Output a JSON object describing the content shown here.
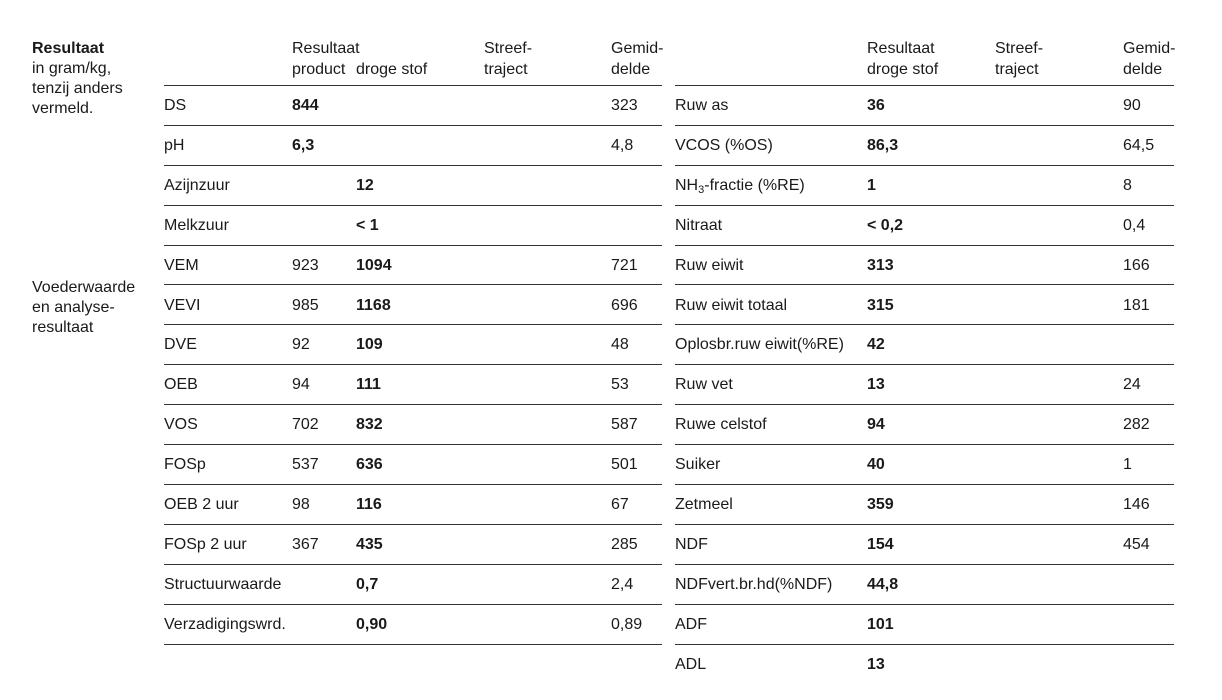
{
  "sidebar": {
    "result_title": "Resultaat",
    "result_lines": [
      "in gram/kg,",
      "tenzij anders",
      "vermeld."
    ],
    "feed_lines": [
      "Voederwaarde",
      "en analyse-",
      "resultaat"
    ]
  },
  "left_headers": {
    "result_l1": "Resultaat",
    "result_l2a": "product",
    "result_l2b": "droge stof",
    "target_l1": "Streef-",
    "target_l2": "traject",
    "avg_l1": "Gemid-",
    "avg_l2": "delde"
  },
  "right_headers": {
    "result_l1": "Resultaat",
    "result_l2": "droge stof",
    "target_l1": "Streef-",
    "target_l2": "traject",
    "avg_l1": "Gemid-",
    "avg_l2": "delde"
  },
  "left_rows": [
    {
      "label": "DS",
      "product": "844",
      "product_bold": true,
      "dm": "",
      "avg": "323"
    },
    {
      "label": "pH",
      "product": "6,3",
      "product_bold": true,
      "dm": "",
      "avg": "4,8"
    },
    {
      "label": "Azijnzuur",
      "product": "",
      "product_bold": false,
      "dm": "12",
      "avg": ""
    },
    {
      "label": "Melkzuur",
      "product": "",
      "product_bold": false,
      "dm": "< 1",
      "avg": ""
    },
    {
      "label": "VEM",
      "product": "923",
      "product_bold": false,
      "dm": "1094",
      "avg": "721"
    },
    {
      "label": "VEVI",
      "product": "985",
      "product_bold": false,
      "dm": "1168",
      "avg": "696"
    },
    {
      "label": "DVE",
      "product": "92",
      "product_bold": false,
      "dm": "109",
      "avg": "48"
    },
    {
      "label": "OEB",
      "product": "94",
      "product_bold": false,
      "dm": "111",
      "avg": "53"
    },
    {
      "label": "VOS",
      "product": "702",
      "product_bold": false,
      "dm": "832",
      "avg": "587"
    },
    {
      "label": "FOSp",
      "product": "537",
      "product_bold": false,
      "dm": "636",
      "avg": "501"
    },
    {
      "label": "OEB 2 uur",
      "product": "98",
      "product_bold": false,
      "dm": "116",
      "avg": "67"
    },
    {
      "label": "FOSp 2 uur",
      "product": "367",
      "product_bold": false,
      "dm": "435",
      "avg": "285"
    },
    {
      "label": "Structuurwaarde",
      "product": "",
      "product_bold": false,
      "dm": "0,7",
      "avg": "2,4"
    },
    {
      "label": "Verzadigingswrd.",
      "product": "",
      "product_bold": false,
      "dm": "0,90",
      "avg": "0,89"
    }
  ],
  "right_rows": [
    {
      "label": "Ruw as",
      "dm": "36",
      "avg": "90"
    },
    {
      "label": "VCOS (%OS)",
      "dm": "86,3",
      "avg": "64,5"
    },
    {
      "label_pre": "NH",
      "label_sub": "3",
      "label_post": "-fractie (%RE)",
      "dm": "1",
      "avg": "8"
    },
    {
      "label": "Nitraat",
      "dm": "< 0,2",
      "avg": "0,4"
    },
    {
      "label": "Ruw eiwit",
      "dm": "313",
      "avg": "166"
    },
    {
      "label": "Ruw eiwit totaal",
      "dm": "315",
      "avg": "181"
    },
    {
      "label": "Oplosbr.ruw eiwit(%RE)",
      "dm": "42",
      "avg": ""
    },
    {
      "label": "Ruw vet",
      "dm": "13",
      "avg": "24"
    },
    {
      "label": "Ruwe celstof",
      "dm": "94",
      "avg": "282"
    },
    {
      "label": "Suiker",
      "dm": "40",
      "avg": "1"
    },
    {
      "label": "Zetmeel",
      "dm": "359",
      "avg": "146"
    },
    {
      "label": "NDF",
      "dm": "154",
      "avg": "454"
    },
    {
      "label": "NDFvert.br.hd(%NDF)",
      "dm": "44,8",
      "avg": ""
    },
    {
      "label": "ADF",
      "dm": "101",
      "avg": ""
    },
    {
      "label": "ADL",
      "dm": "13",
      "avg": ""
    }
  ]
}
